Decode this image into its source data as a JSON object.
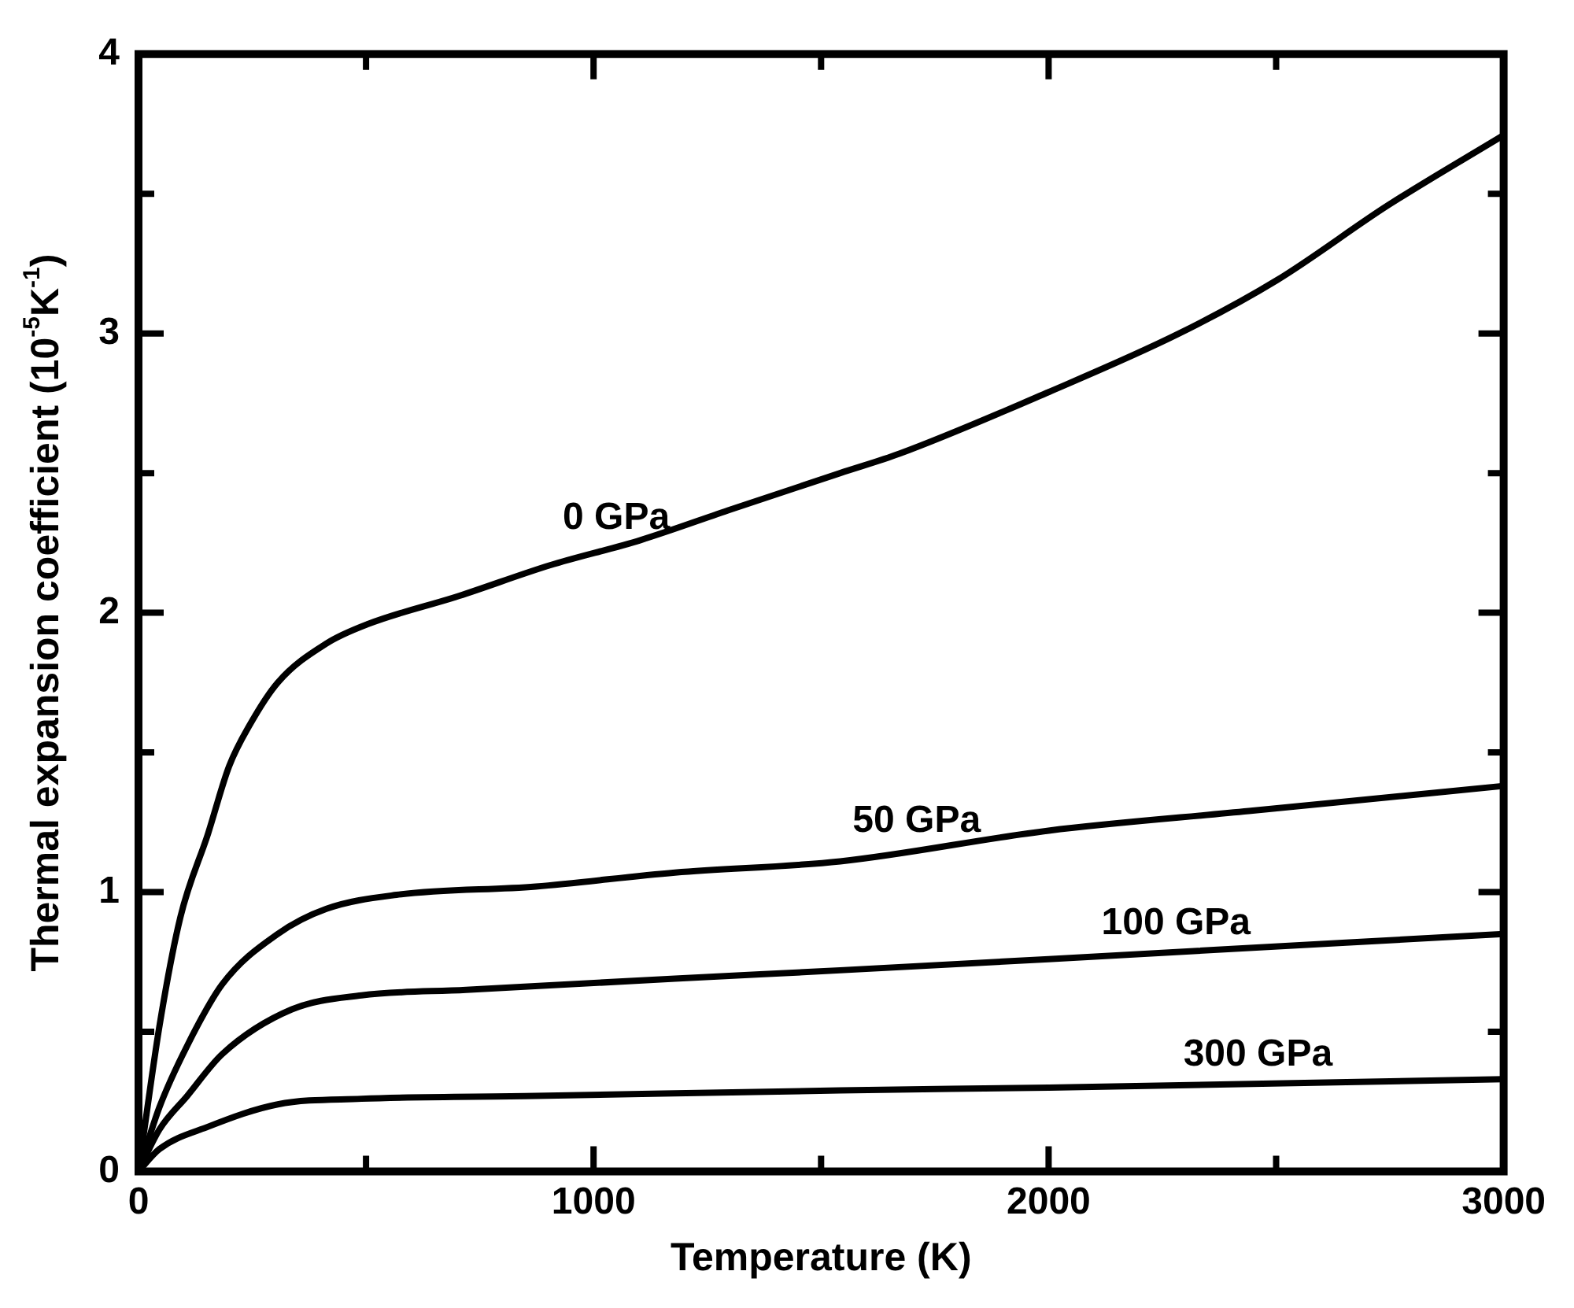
{
  "chart_data": {
    "type": "line",
    "xlabel": "Temperature (K)",
    "ylabel": "Thermal expansion coefficient (10$^{-5}$K$^{-1}$)",
    "xlim": [
      0,
      3000
    ],
    "ylim": [
      0,
      4
    ],
    "xticks": [
      0,
      {
        "value": 500,
        "label": null
      },
      1000,
      {
        "value": 1500,
        "label": null
      },
      2000,
      {
        "value": 2500,
        "label": null
      },
      3000
    ],
    "yticks": [
      0,
      {
        "value": 0.5,
        "label": null
      },
      1,
      {
        "value": 1.5,
        "label": null
      },
      2,
      {
        "value": 2.5,
        "label": null
      },
      3,
      {
        "value": 3.5,
        "label": null
      },
      4
    ],
    "marker": "none",
    "line_style": "solid",
    "legend": false,
    "series": [
      {
        "name": "0 GPa",
        "color": "#000000",
        "x": [
          0,
          46,
          92,
          153,
          199,
          245,
          306,
          413,
          505,
          704,
          904,
          1103,
          1302,
          1542,
          1673,
          2000,
          2287,
          2501,
          2747,
          3000
        ],
        "values": [
          0,
          0.52,
          0.91,
          1.21,
          1.45,
          1.6,
          1.75,
          1.89,
          1.96,
          2.06,
          2.17,
          2.26,
          2.37,
          2.5,
          2.57,
          2.79,
          3.0,
          3.19,
          3.46,
          3.71
        ]
      },
      {
        "name": "50 GPa",
        "color": "#000000",
        "x": [
          0,
          46,
          107,
          184,
          306,
          413,
          567,
          873,
          1179,
          1542,
          2000,
          2440,
          3000
        ],
        "values": [
          0,
          0.23,
          0.45,
          0.67,
          0.85,
          0.94,
          0.99,
          1.02,
          1.07,
          1.11,
          1.22,
          1.29,
          1.38
        ]
      },
      {
        "name": "100 GPa",
        "color": "#000000",
        "x": [
          0,
          46,
          107,
          184,
          337,
          490,
          720,
          1179,
          1542,
          2000,
          3000
        ],
        "values": [
          0,
          0.15,
          0.27,
          0.42,
          0.58,
          0.63,
          0.65,
          0.69,
          0.72,
          0.76,
          0.85
        ]
      },
      {
        "name": "300 GPa",
        "color": "#000000",
        "x": [
          0,
          46,
          153,
          306,
          490,
          873,
          1542,
          2000,
          3000
        ],
        "values": [
          0,
          0.08,
          0.16,
          0.24,
          0.26,
          0.27,
          0.29,
          0.3,
          0.33
        ]
      }
    ]
  }
}
